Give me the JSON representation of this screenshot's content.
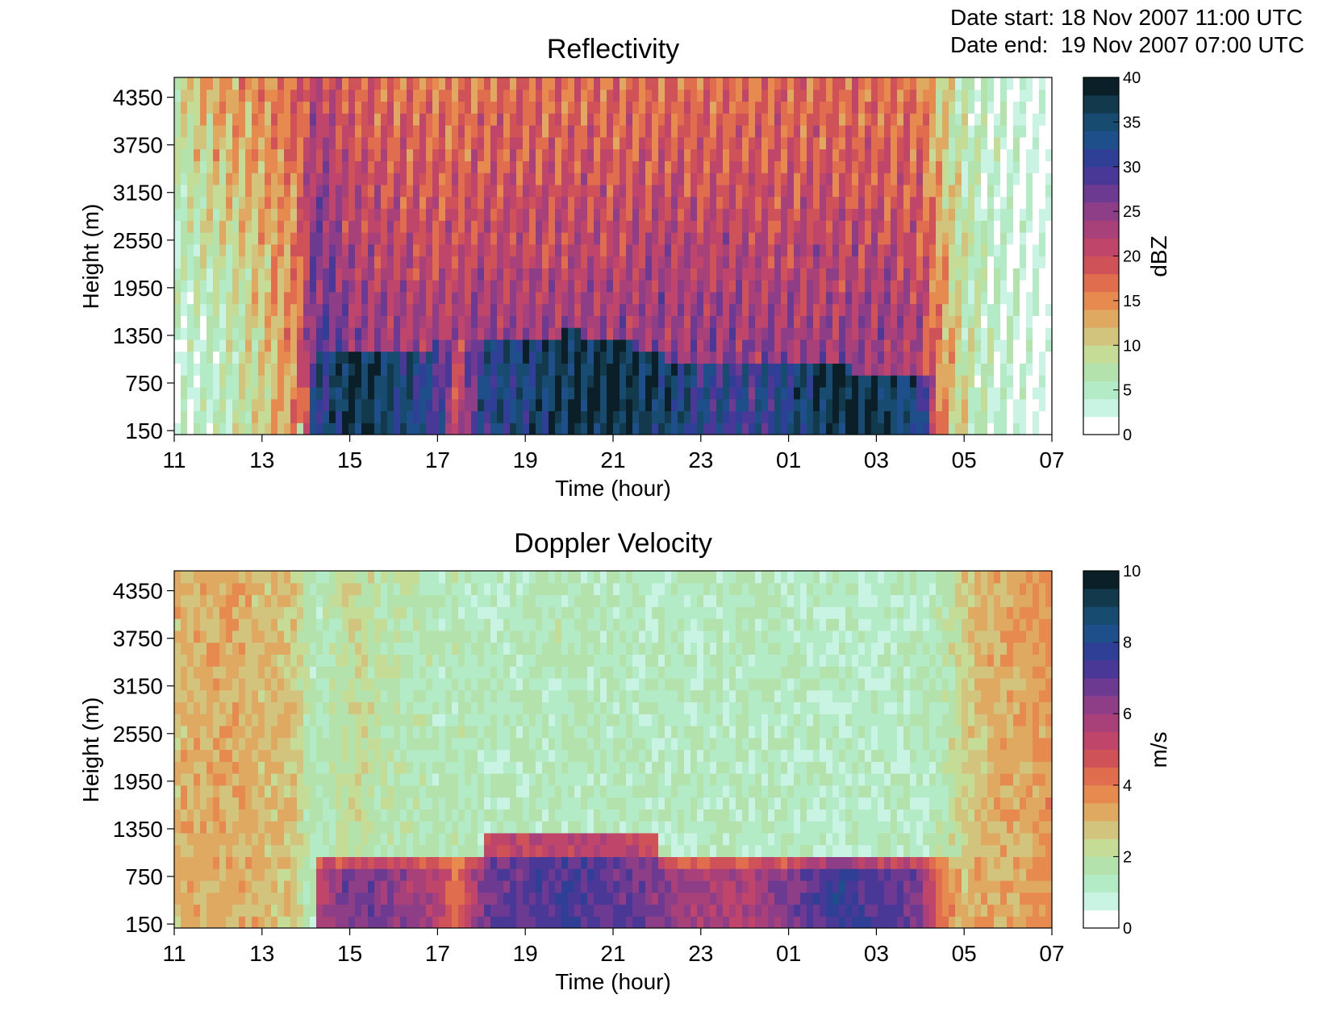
{
  "header": {
    "date_start_label": "Date start:",
    "date_start_value": "18 Nov 2007 11:00 UTC",
    "date_end_label": "Date end:",
    "date_end_value": "19 Nov 2007 07:00 UTC"
  },
  "chart_data": [
    {
      "type": "heatmap",
      "title": "Reflectivity",
      "xlabel": "Time (hour)",
      "ylabel": "Height (m)",
      "x_ticks": [
        "11",
        "13",
        "15",
        "17",
        "19",
        "21",
        "23",
        "01",
        "03",
        "05",
        "07"
      ],
      "x_range_hours_elapsed": [
        0,
        20
      ],
      "y_ticks": [
        150,
        750,
        1350,
        1950,
        2550,
        3150,
        3750,
        4350
      ],
      "ylim": [
        100,
        4600
      ],
      "colorbar": {
        "label": "dBZ",
        "min": 0,
        "max": 40,
        "levels": 20,
        "ticks": [
          0,
          5,
          10,
          15,
          20,
          25,
          30,
          35,
          40
        ]
      },
      "time_hours": [
        0,
        1,
        2,
        2.8,
        3.2,
        3.6,
        4,
        5,
        6,
        6.5,
        7,
        8,
        9,
        10,
        11,
        12,
        13,
        14,
        15,
        16,
        17,
        17.5,
        18,
        18.5,
        19,
        19.5,
        20
      ],
      "summary_by_time": {
        "top_layer_dBZ": [
          8,
          14,
          15,
          17,
          22,
          20,
          18,
          17,
          16,
          16,
          17,
          17,
          17,
          17,
          17,
          17,
          17,
          17,
          17,
          17,
          16,
          10,
          6,
          4,
          3,
          2,
          0
        ],
        "mid_layer_dBZ": [
          3,
          5,
          10,
          15,
          28,
          28,
          25,
          24,
          23,
          23,
          24,
          24,
          24,
          24,
          25,
          25,
          24,
          24,
          24,
          24,
          22,
          15,
          8,
          5,
          3,
          2,
          0
        ],
        "below_1000m_dBZ": [
          4,
          5,
          5,
          6,
          32,
          34,
          38,
          35,
          30,
          20,
          32,
          34,
          37,
          38,
          36,
          32,
          30,
          33,
          38,
          37,
          33,
          14,
          8,
          5,
          3,
          2,
          0
        ],
        "melting_layer_top_m": [
          0,
          0,
          0,
          0,
          1100,
          1100,
          1100,
          1100,
          1250,
          1250,
          1250,
          1250,
          1400,
          1300,
          1100,
          1000,
          950,
          950,
          950,
          900,
          850,
          850,
          0,
          0,
          0,
          0,
          0
        ]
      }
    },
    {
      "type": "heatmap",
      "title": "Doppler Velocity",
      "xlabel": "Time (hour)",
      "ylabel": "Height (m)",
      "x_ticks": [
        "11",
        "13",
        "15",
        "17",
        "19",
        "21",
        "23",
        "01",
        "03",
        "05",
        "07"
      ],
      "x_range_hours_elapsed": [
        0,
        20
      ],
      "y_ticks": [
        150,
        750,
        1350,
        1950,
        2550,
        3150,
        3750,
        4350
      ],
      "ylim": [
        100,
        4600
      ],
      "colorbar": {
        "label": "m/s",
        "min": 0,
        "max": 10,
        "levels": 20,
        "ticks": [
          0,
          2,
          4,
          6,
          8,
          10
        ]
      },
      "time_hours": [
        0,
        1,
        2,
        2.8,
        3.2,
        3.6,
        4,
        5,
        6,
        6.5,
        7,
        8,
        9,
        10,
        11,
        12,
        13,
        14,
        15,
        16,
        17,
        17.5,
        18,
        18.5,
        19,
        19.5,
        20
      ],
      "summary_by_time": {
        "above_melting_layer_ms": [
          3.0,
          3.2,
          3.0,
          2.6,
          1.3,
          1.8,
          2.2,
          1.8,
          1.4,
          1.5,
          1.4,
          1.4,
          1.5,
          1.4,
          1.3,
          1.3,
          1.4,
          1.3,
          1.2,
          1.2,
          1.3,
          1.6,
          2.5,
          3.0,
          3.2,
          3.4,
          3.6
        ],
        "below_melting_layer_ms": [
          3.0,
          3.2,
          3.0,
          3.0,
          5.2,
          6.0,
          6.8,
          6.3,
          5.5,
          4.0,
          6.5,
          7.0,
          7.3,
          7.0,
          6.5,
          5.8,
          5.5,
          6.5,
          7.6,
          7.2,
          6.5,
          4.0,
          3.0,
          3.2,
          3.2,
          3.4,
          3.6
        ]
      }
    }
  ]
}
